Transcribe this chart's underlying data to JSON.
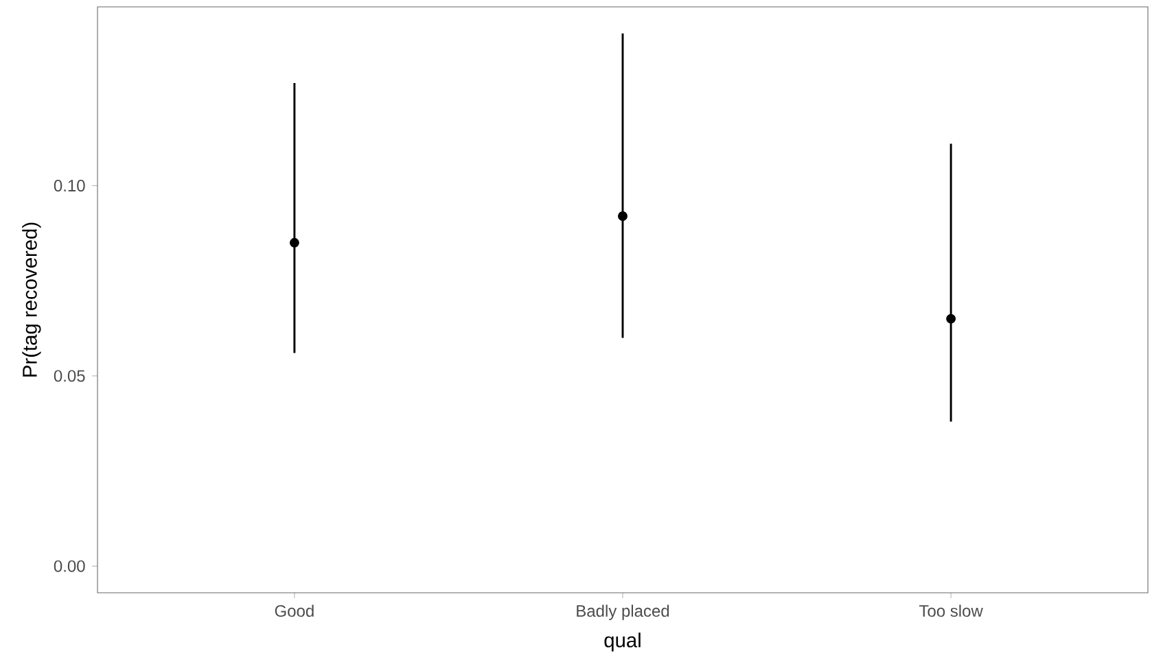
{
  "chart_data": {
    "type": "scatter",
    "xlabel": "qual",
    "ylabel": "Pr(tag recovered)",
    "categories": [
      "Good",
      "Badly placed",
      "Too slow"
    ],
    "values": [
      0.085,
      0.092,
      0.065
    ],
    "errors": [
      [
        0.056,
        0.127
      ],
      [
        0.06,
        0.14
      ],
      [
        0.038,
        0.111
      ]
    ],
    "color": "#000000",
    "marker": "circle",
    "grid": false,
    "ylim": [
      -0.007,
      0.147
    ],
    "yticks": [
      {
        "value": 0,
        "label": "0.00"
      },
      {
        "value": 0.05,
        "label": "0.05"
      },
      {
        "value": 0.1,
        "label": "0.10"
      }
    ]
  }
}
